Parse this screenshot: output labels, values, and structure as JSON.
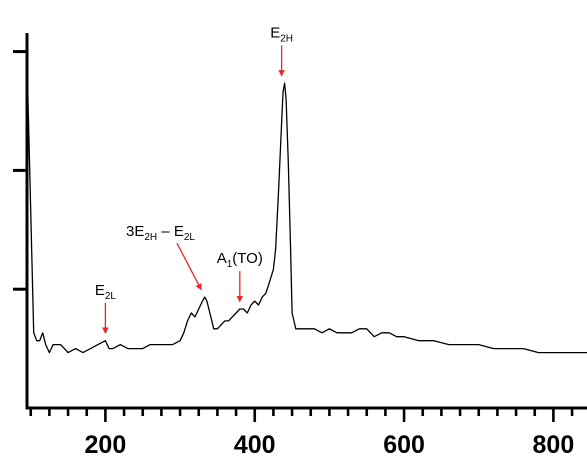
{
  "chart_data": {
    "type": "line",
    "title": "",
    "xlabel": "",
    "ylabel": "",
    "xlim": [
      95,
      845
    ],
    "ylim": [
      0,
      1
    ],
    "grid": false,
    "legend": "none",
    "x_ticks": [
      200,
      400,
      600,
      800
    ],
    "y_ticks": [
      0.3,
      0.6,
      0.9
    ],
    "line_color": "#000000",
    "arrow_color": "#e8262a",
    "series": [
      {
        "x": [
          95,
          100,
          104,
          108,
          112,
          116,
          120,
          125,
          130,
          140,
          150,
          160,
          170,
          180,
          190,
          200,
          205,
          210,
          220,
          230,
          240,
          250,
          260,
          270,
          280,
          290,
          300,
          305,
          310,
          315,
          320,
          325,
          330,
          333,
          336,
          340,
          345,
          350,
          355,
          360,
          365,
          370,
          375,
          380,
          385,
          390,
          395,
          400,
          405,
          410,
          415,
          420,
          425,
          428,
          432,
          436,
          438,
          440,
          442,
          445,
          448,
          450,
          455,
          460,
          470,
          480,
          490,
          500,
          510,
          520,
          530,
          540,
          550,
          560,
          570,
          580,
          590,
          600,
          620,
          640,
          660,
          680,
          700,
          720,
          740,
          760,
          780,
          800,
          820,
          845
        ],
        "y": [
          0.88,
          0.5,
          0.19,
          0.17,
          0.17,
          0.19,
          0.16,
          0.14,
          0.16,
          0.16,
          0.14,
          0.15,
          0.14,
          0.15,
          0.16,
          0.17,
          0.15,
          0.15,
          0.16,
          0.15,
          0.15,
          0.15,
          0.16,
          0.16,
          0.16,
          0.16,
          0.17,
          0.19,
          0.22,
          0.24,
          0.23,
          0.25,
          0.27,
          0.28,
          0.27,
          0.24,
          0.2,
          0.2,
          0.21,
          0.22,
          0.22,
          0.23,
          0.24,
          0.25,
          0.25,
          0.24,
          0.26,
          0.27,
          0.26,
          0.28,
          0.29,
          0.32,
          0.35,
          0.4,
          0.55,
          0.72,
          0.8,
          0.82,
          0.78,
          0.62,
          0.4,
          0.24,
          0.2,
          0.2,
          0.2,
          0.2,
          0.19,
          0.2,
          0.19,
          0.19,
          0.19,
          0.2,
          0.2,
          0.18,
          0.19,
          0.19,
          0.18,
          0.18,
          0.17,
          0.17,
          0.16,
          0.16,
          0.16,
          0.15,
          0.15,
          0.15,
          0.14,
          0.14,
          0.14,
          0.14
        ]
      }
    ],
    "annotations": [
      {
        "id": "e2l",
        "base": "E",
        "sub": "2L",
        "tail": "",
        "tail_sub": "",
        "tail_end": "",
        "x": 200,
        "y": 0.19,
        "arrow": "down"
      },
      {
        "id": "combo",
        "base": "3E",
        "sub": "2H",
        "tail": " – E",
        "tail_sub": "2L",
        "tail_end": "",
        "x": 328,
        "y": 0.3,
        "arrow": "diagonal"
      },
      {
        "id": "a1to",
        "base": "A",
        "sub": "1",
        "tail": "(TO)",
        "tail_sub": "",
        "tail_end": "",
        "x": 380,
        "y": 0.27,
        "arrow": "down"
      },
      {
        "id": "e2h",
        "base": "E",
        "sub": "2H",
        "tail": "",
        "tail_sub": "",
        "tail_end": "",
        "x": 436,
        "y": 0.84,
        "arrow": "down"
      }
    ]
  }
}
